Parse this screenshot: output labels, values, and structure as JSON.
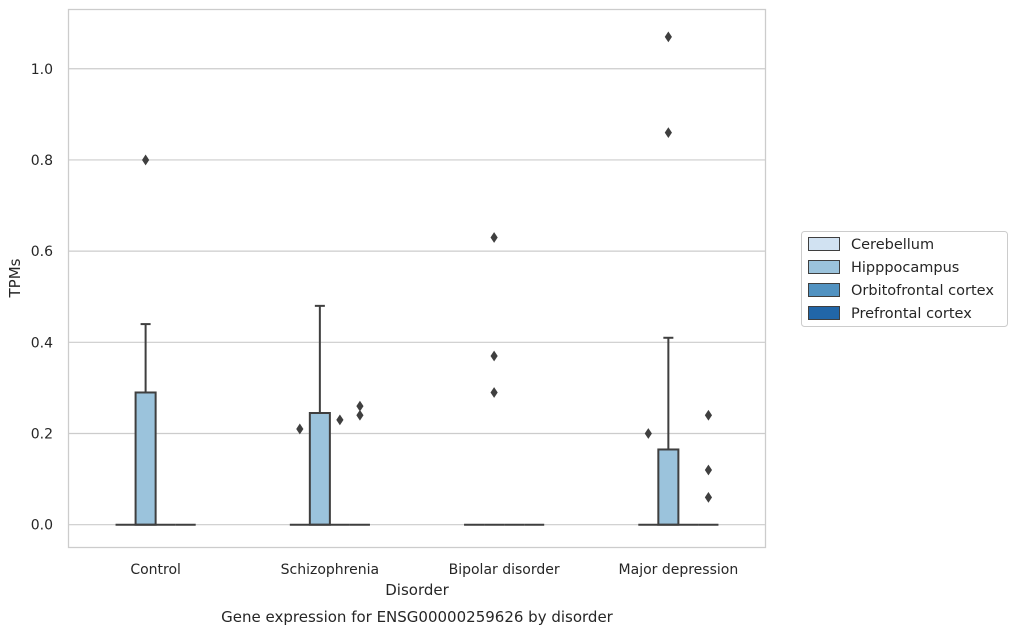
{
  "chart_data": {
    "type": "box",
    "title": "",
    "caption": "Gene expression for ENSG00000259626 by disorder",
    "xlabel": "Disorder",
    "ylabel": "TPMs",
    "ylim": [
      -0.05,
      1.13
    ],
    "yticks": [
      0.0,
      0.2,
      0.4,
      0.6,
      0.8,
      1.0
    ],
    "ytick_labels": [
      "0.0",
      "0.2",
      "0.4",
      "0.6",
      "0.8",
      "1.0"
    ],
    "grid": "horizontal",
    "legend_placement": "center-right outside",
    "categories": [
      "Control",
      "Schizophrenia",
      "Bipolar disorder",
      "Major depression"
    ],
    "series": [
      {
        "name": "Cerebellum",
        "color": "#d1e2f2",
        "boxes": [
          {
            "category": "Control",
            "q1": 0,
            "median": 0,
            "q3": 0,
            "whisker_low": 0,
            "whisker_high": 0,
            "outliers": []
          },
          {
            "category": "Schizophrenia",
            "q1": 0,
            "median": 0,
            "q3": 0,
            "whisker_low": 0,
            "whisker_high": 0,
            "outliers": [
              0.21
            ]
          },
          {
            "category": "Bipolar disorder",
            "q1": 0,
            "median": 0,
            "q3": 0,
            "whisker_low": 0,
            "whisker_high": 0,
            "outliers": []
          },
          {
            "category": "Major depression",
            "q1": 0,
            "median": 0,
            "q3": 0,
            "whisker_low": 0,
            "whisker_high": 0,
            "outliers": [
              0.2
            ]
          }
        ]
      },
      {
        "name": "Hipppocampus",
        "color": "#9bc3dc",
        "boxes": [
          {
            "category": "Control",
            "q1": 0,
            "median": 0,
            "q3": 0.29,
            "whisker_low": 0,
            "whisker_high": 0.44,
            "outliers": [
              0.8
            ]
          },
          {
            "category": "Schizophrenia",
            "q1": 0,
            "median": 0,
            "q3": 0.245,
            "whisker_low": 0,
            "whisker_high": 0.48,
            "outliers": []
          },
          {
            "category": "Bipolar disorder",
            "q1": 0,
            "median": 0,
            "q3": 0,
            "whisker_low": 0,
            "whisker_high": 0,
            "outliers": [
              0.29,
              0.37,
              0.63
            ]
          },
          {
            "category": "Major depression",
            "q1": 0,
            "median": 0,
            "q3": 0.165,
            "whisker_low": 0,
            "whisker_high": 0.41,
            "outliers": [
              0.86,
              1.07
            ]
          }
        ]
      },
      {
        "name": "Orbitofrontal cortex",
        "color": "#5192c1",
        "boxes": [
          {
            "category": "Control",
            "q1": 0,
            "median": 0,
            "q3": 0,
            "whisker_low": 0,
            "whisker_high": 0,
            "outliers": []
          },
          {
            "category": "Schizophrenia",
            "q1": 0,
            "median": 0,
            "q3": 0,
            "whisker_low": 0,
            "whisker_high": 0,
            "outliers": [
              0.23
            ]
          },
          {
            "category": "Bipolar disorder",
            "q1": 0,
            "median": 0,
            "q3": 0,
            "whisker_low": 0,
            "whisker_high": 0,
            "outliers": []
          },
          {
            "category": "Major depression",
            "q1": 0,
            "median": 0,
            "q3": 0,
            "whisker_low": 0,
            "whisker_high": 0,
            "outliers": []
          }
        ]
      },
      {
        "name": "Prefrontal cortex",
        "color": "#2166a8",
        "boxes": [
          {
            "category": "Control",
            "q1": 0,
            "median": 0,
            "q3": 0,
            "whisker_low": 0,
            "whisker_high": 0,
            "outliers": []
          },
          {
            "category": "Schizophrenia",
            "q1": 0,
            "median": 0,
            "q3": 0,
            "whisker_low": 0,
            "whisker_high": 0,
            "outliers": [
              0.24,
              0.26
            ]
          },
          {
            "category": "Bipolar disorder",
            "q1": 0,
            "median": 0,
            "q3": 0,
            "whisker_low": 0,
            "whisker_high": 0,
            "outliers": []
          },
          {
            "category": "Major depression",
            "q1": 0,
            "median": 0,
            "q3": 0,
            "whisker_low": 0,
            "whisker_high": 0,
            "outliers": [
              0.06,
              0.12,
              0.24
            ]
          }
        ]
      }
    ]
  }
}
